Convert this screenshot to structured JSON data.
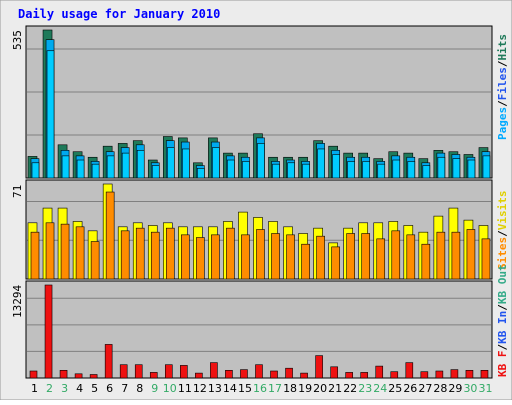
{
  "title": "Daily usage for January 2010",
  "colors": {
    "background": "#ececec",
    "panel": "#c0c0c0",
    "grid": "#808080",
    "hits": "#1f7a5a",
    "files": "#00aaee",
    "pages": "#00ccff",
    "visits": "#ffff00",
    "sites": "#ff8c00",
    "kb_out": "#33aa88",
    "kb_in": "#2255ee",
    "kb_f": "#ee1111",
    "weekend_label": "#33aa66",
    "title": "#0000ff"
  },
  "panels": {
    "top": {
      "max_label": "535",
      "right_labels": [
        "Pages",
        "/",
        "Files",
        "/",
        "Hits"
      ]
    },
    "middle": {
      "max_label": "71",
      "right_labels": [
        "Sites",
        "/",
        "Visits"
      ]
    },
    "bottom": {
      "max_label": "13294",
      "right_labels": [
        "KB",
        "F",
        "/",
        "KB",
        "In",
        "/",
        "KB",
        "Out"
      ]
    }
  },
  "chart_data": [
    {
      "type": "bar",
      "title": "Daily usage for January 2010",
      "categories": [
        "1",
        "2",
        "3",
        "4",
        "5",
        "6",
        "7",
        "8",
        "9",
        "10",
        "11",
        "12",
        "13",
        "14",
        "15",
        "16",
        "17",
        "18",
        "19",
        "20",
        "21",
        "22",
        "23",
        "24",
        "25",
        "26",
        "27",
        "28",
        "29",
        "30",
        "31"
      ],
      "weekend_days": [
        "2",
        "3",
        "9",
        "10",
        "16",
        "17",
        "23",
        "24",
        "30",
        "31"
      ],
      "ylim": [
        0,
        535
      ],
      "series": [
        {
          "name": "Hits",
          "values": [
            78,
            535,
            120,
            95,
            75,
            115,
            125,
            135,
            65,
            150,
            145,
            55,
            145,
            90,
            90,
            160,
            75,
            75,
            75,
            135,
            115,
            90,
            90,
            70,
            95,
            90,
            70,
            100,
            95,
            85,
            110
          ]
        },
        {
          "name": "Files",
          "values": [
            70,
            500,
            100,
            80,
            60,
            95,
            110,
            120,
            55,
            135,
            130,
            45,
            130,
            80,
            75,
            145,
            60,
            65,
            60,
            125,
            100,
            75,
            75,
            60,
            80,
            75,
            55,
            90,
            85,
            75,
            95
          ]
        },
        {
          "name": "Pages",
          "values": [
            55,
            460,
            80,
            65,
            50,
            80,
            90,
            100,
            45,
            110,
            105,
            35,
            110,
            65,
            60,
            125,
            50,
            55,
            50,
            105,
            85,
            60,
            60,
            50,
            65,
            60,
            45,
            75,
            70,
            65,
            80
          ]
        }
      ]
    },
    {
      "type": "bar",
      "categories": [
        "1",
        "2",
        "3",
        "4",
        "5",
        "6",
        "7",
        "8",
        "9",
        "10",
        "11",
        "12",
        "13",
        "14",
        "15",
        "16",
        "17",
        "18",
        "19",
        "20",
        "21",
        "22",
        "23",
        "24",
        "25",
        "26",
        "27",
        "28",
        "29",
        "30",
        "31"
      ],
      "ylim": [
        0,
        71
      ],
      "series": [
        {
          "name": "Visits",
          "values": [
            42,
            53,
            53,
            43,
            36,
            71,
            39,
            42,
            40,
            42,
            39,
            39,
            39,
            43,
            50,
            46,
            43,
            39,
            34,
            38,
            27,
            38,
            42,
            42,
            43,
            40,
            35,
            47,
            53,
            44,
            40
          ]
        },
        {
          "name": "Sites",
          "values": [
            35,
            42,
            41,
            39,
            28,
            65,
            36,
            38,
            35,
            38,
            33,
            31,
            33,
            38,
            33,
            37,
            34,
            33,
            26,
            32,
            24,
            34,
            34,
            30,
            36,
            33,
            26,
            35,
            35,
            37,
            30
          ]
        }
      ]
    },
    {
      "type": "bar",
      "categories": [
        "1",
        "2",
        "3",
        "4",
        "5",
        "6",
        "7",
        "8",
        "9",
        "10",
        "11",
        "12",
        "13",
        "14",
        "15",
        "16",
        "17",
        "18",
        "19",
        "20",
        "21",
        "22",
        "23",
        "24",
        "25",
        "26",
        "27",
        "28",
        "29",
        "30",
        "31"
      ],
      "ylim": [
        0,
        13294
      ],
      "series": [
        {
          "name": "KB F",
          "values": [
            1000,
            13294,
            1100,
            600,
            500,
            4800,
            1900,
            1900,
            800,
            1900,
            1800,
            700,
            2200,
            1100,
            1200,
            1900,
            1000,
            1400,
            700,
            3200,
            1600,
            800,
            800,
            1700,
            900,
            2200,
            900,
            1000,
            1200,
            1100,
            1100
          ]
        }
      ]
    }
  ]
}
